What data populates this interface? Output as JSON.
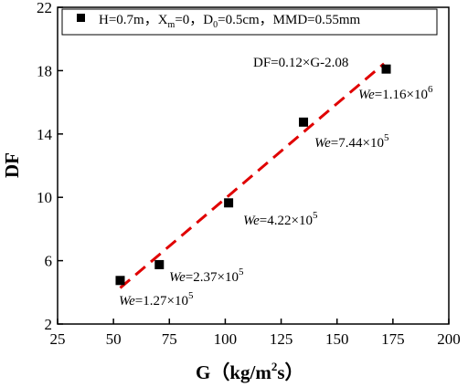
{
  "chart_data": {
    "type": "scatter",
    "xlabel": "G（kg/m²s）",
    "xlabel_main": "G（kg/m",
    "xlabel_sup": "2",
    "xlabel_end": "s）",
    "ylabel": "DF",
    "xlim": [
      25,
      200
    ],
    "ylim": [
      2,
      22
    ],
    "x_ticks": [
      25,
      50,
      75,
      100,
      125,
      150,
      175,
      200
    ],
    "y_ticks": [
      2,
      6,
      10,
      14,
      18,
      22
    ],
    "grid": false,
    "legend_placement": "top",
    "series": [
      {
        "name": "H=0.7m，Xm=0，D0=0.5cm，MMD=0.55mm",
        "marker": "square",
        "color": "#000000",
        "x": [
          53,
          70.5,
          101.5,
          135,
          172
        ],
        "y": [
          4.75,
          5.75,
          9.65,
          14.75,
          18.1
        ]
      }
    ],
    "legend": {
      "p1": "H=0.7m，X",
      "s1": "m",
      "p2": "=0，D",
      "s2": "0",
      "p3": "=0.5cm，MMD=0.55mm"
    },
    "fit": {
      "label": "DF=0.12×G-2.08",
      "x": [
        53,
        171
      ],
      "y": [
        4.28,
        18.44
      ],
      "color": "#e00000",
      "style": "dashed"
    },
    "annotations": [
      {
        "name": "we-127",
        "we": "We",
        "mid": "=1.27×10",
        "exp": "5",
        "x": 53,
        "y": 4.75
      },
      {
        "name": "we-237",
        "we": "We",
        "mid": "=2.37×10",
        "exp": "5",
        "x": 70.5,
        "y": 5.75
      },
      {
        "name": "we-422",
        "we": "We",
        "mid": "=4.22×10",
        "exp": "5",
        "x": 101.5,
        "y": 9.65
      },
      {
        "name": "we-744",
        "we": "We",
        "mid": "=7.44×10",
        "exp": "5",
        "x": 135,
        "y": 14.75
      },
      {
        "name": "we-116",
        "we": "We",
        "mid": "=1.16×10",
        "exp": "6",
        "x": 172,
        "y": 18.1
      }
    ]
  }
}
